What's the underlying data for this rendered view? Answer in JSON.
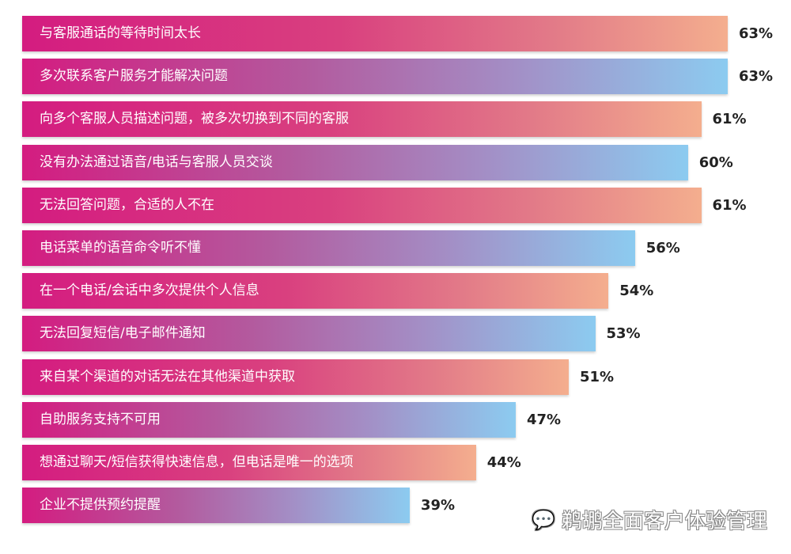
{
  "chart_data": {
    "type": "bar",
    "orientation": "horizontal",
    "categories": [
      "与客服通话的等待时间太长",
      "多次联系客户服务才能解决问题",
      "向多个客服人员描述问题，被多次切换到不同的客服",
      "没有办法通过语音/电话与客服人员交谈",
      "无法回答问题，合适的人不在",
      "电话菜单的语音命令听不懂",
      "在一个电话/会话中多次提供个人信息",
      "无法回复短信/电子邮件通知",
      "来自某个渠道的对话无法在其他渠道中获取",
      "自助服务支持不可用",
      "想通过聊天/短信获得快速信息，但电话是唯一的选项",
      "企业不提供预约提醒"
    ],
    "values": [
      63,
      63,
      61,
      60,
      61,
      56,
      54,
      53,
      51,
      47,
      44,
      39
    ],
    "value_labels": [
      "63%",
      "63%",
      "61%",
      "60%",
      "61%",
      "56%",
      "54%",
      "53%",
      "51%",
      "47%",
      "44%",
      "39%"
    ],
    "unit": "%",
    "grid": false,
    "legend": "none",
    "colors": {
      "warm_gradient": [
        "#d41c80",
        "#f4ae8e"
      ],
      "cool_gradient": [
        "#d41c80",
        "#8ccbf0"
      ]
    }
  },
  "watermark": {
    "icon": "wechat-icon",
    "text": "鹈鹕全面客户体验管理"
  }
}
